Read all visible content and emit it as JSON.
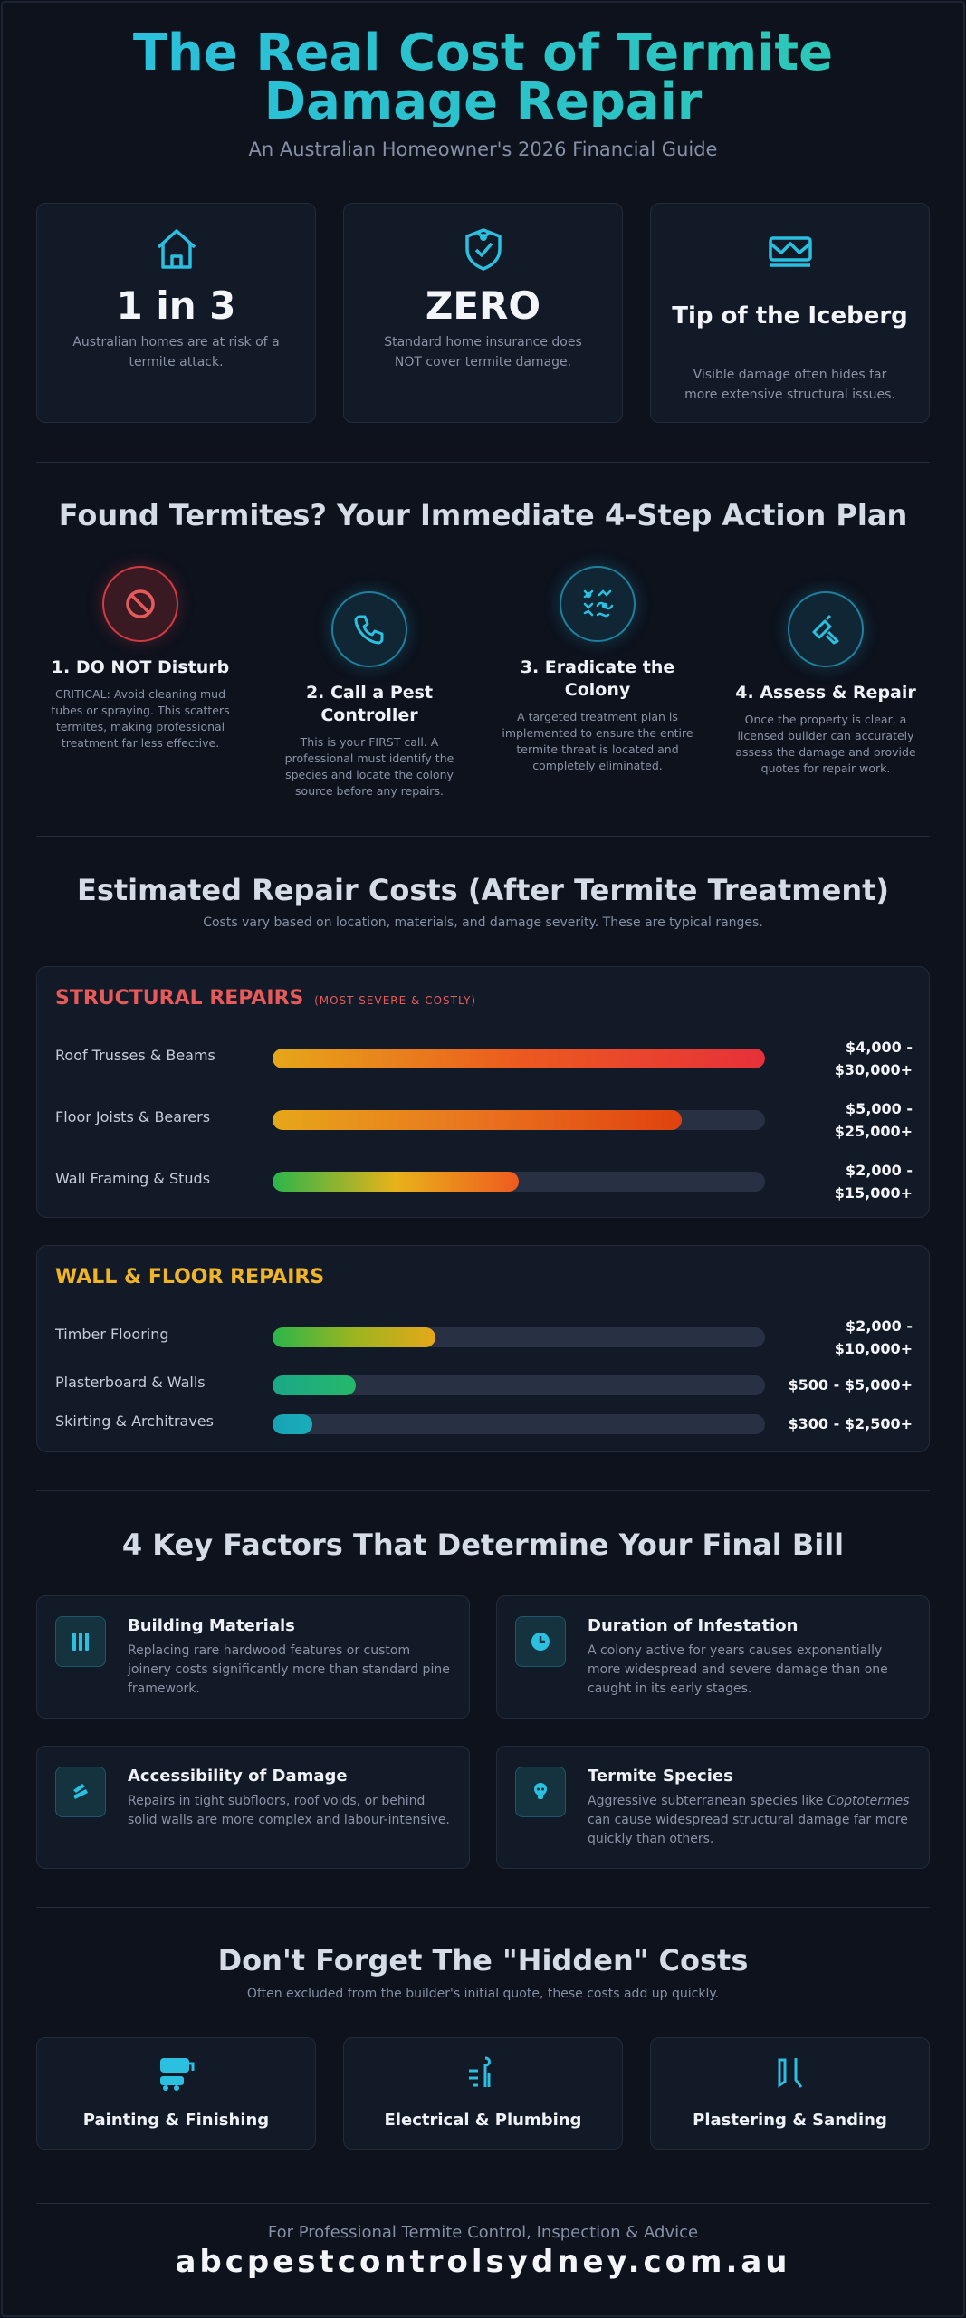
{
  "header": {
    "title": "The Real Cost of Termite Damage Repair",
    "subtitle": "An Australian Homeowner's 2026 Financial Guide"
  },
  "stats": [
    {
      "icon": "house-icon",
      "value": "1 in 3",
      "desc": "Australian homes are at risk of a termite attack."
    },
    {
      "icon": "shield-bug-icon",
      "value": "ZERO",
      "desc": "Standard home insurance does NOT cover termite damage."
    },
    {
      "icon": "broken-house-icon",
      "value": "Tip of the Iceberg",
      "desc": "Visible damage often hides far more extensive structural issues."
    }
  ],
  "steps_section": {
    "title": "Found Termites? Your Immediate 4-Step Action Plan",
    "steps": [
      {
        "icon": "ban-icon",
        "title": "1. DO NOT Disturb",
        "desc": "CRITICAL: Avoid cleaning mud tubes or spraying. This scatters termites, making professional treatment far less effective."
      },
      {
        "icon": "phone-icon",
        "title": "2. Call a Pest Controller",
        "desc": "This is your FIRST call. A professional must identify the species and locate the colony source before any repairs."
      },
      {
        "icon": "termites-icon",
        "title": "3. Eradicate the Colony",
        "desc": "A targeted treatment plan is implemented to ensure the entire termite threat is located and completely eliminated."
      },
      {
        "icon": "tools-icon",
        "title": "4. Assess & Repair",
        "desc": "Once the property is clear, a licensed builder can accurately assess the damage and provide quotes for repair work."
      }
    ]
  },
  "costs_section": {
    "title": "Estimated Repair Costs (After Termite Treatment)",
    "subtitle": "Costs vary based on location, materials, and damage severity. These are typical ranges."
  },
  "structural": {
    "heading": "STRUCTURAL REPAIRS",
    "tag": "(MOST SEVERE & COSTLY)",
    "color": "#e65a5a",
    "rows": [
      {
        "label": "Roof Trusses & Beams",
        "value_line1": "$4,000 -",
        "value_line2": "$30,000+",
        "fill_pct": 100,
        "gradient": [
          "#e6a719",
          "#ec5a1f",
          "#e6303a"
        ]
      },
      {
        "label": "Floor Joists & Bearers",
        "value_line1": "$5,000 -",
        "value_line2": "$25,000+",
        "fill_pct": 83,
        "gradient": [
          "#e6a719",
          "#e9731f",
          "#e0420f"
        ]
      },
      {
        "label": "Wall Framing & Studs",
        "value_line1": "$2,000 -",
        "value_line2": "$15,000+",
        "fill_pct": 50,
        "gradient": [
          "#2bb54a",
          "#e8b21a",
          "#ef5a1f"
        ]
      }
    ]
  },
  "wall_floor": {
    "heading": "WALL & FLOOR REPAIRS",
    "color": "#f0b429",
    "rows": [
      {
        "label": "Timber Flooring",
        "value_line1": "$2,000 -",
        "value_line2": "$10,000+",
        "fill_pct": 33,
        "gradient": [
          "#2bb54a",
          "#9bb520",
          "#e6a719"
        ]
      },
      {
        "label": "Plasterboard & Walls",
        "value": "$500 - $5,000+",
        "fill_pct": 17,
        "gradient": [
          "#1aa887",
          "#25b86a"
        ]
      },
      {
        "label": "Skirting & Architraves",
        "value": "$300 - $2,500+",
        "fill_pct": 8,
        "gradient": [
          "#16a3b5",
          "#1aadb8"
        ]
      }
    ]
  },
  "factors_section": {
    "title": "4 Key Factors That Determine Your Final Bill",
    "factors": [
      {
        "icon": "materials-icon",
        "title": "Building Materials",
        "desc": "Replacing rare hardwood features or custom joinery costs significantly more than standard pine framework."
      },
      {
        "icon": "clock-icon",
        "title": "Duration of Infestation",
        "desc": "A colony active for years causes exponentially more widespread and severe damage than one caught in its early stages."
      },
      {
        "icon": "access-icon",
        "title": "Accessibility of Damage",
        "desc": "Repairs in tight subfloors, roof voids, or behind solid walls are more complex and labour-intensive."
      },
      {
        "icon": "bug-icon",
        "title": "Termite Species",
        "desc_pre": "Aggressive subterranean species like ",
        "desc_em": "Coptotermes",
        "desc_post": " can cause widespread structural damage far more quickly than others."
      }
    ]
  },
  "hidden_section": {
    "title": "Don't Forget The \"Hidden\" Costs",
    "subtitle": "Often excluded from the builder's initial quote, these costs add up quickly.",
    "items": [
      {
        "icon": "paint-roller-icon",
        "label": "Painting & Finishing"
      },
      {
        "icon": "plug-icon",
        "label": "Electrical & Plumbing"
      },
      {
        "icon": "trowel-icon",
        "label": "Plastering & Sanding"
      }
    ]
  },
  "footer": {
    "lead": "For Professional Termite Control, Inspection & Advice",
    "site": "abcpestcontrolsydney.com.au"
  },
  "colors": {
    "accent": "#2bbfe0",
    "danger": "#e65a5a",
    "warning": "#f0b429",
    "background": "#0d121d",
    "card": "#131a27"
  }
}
